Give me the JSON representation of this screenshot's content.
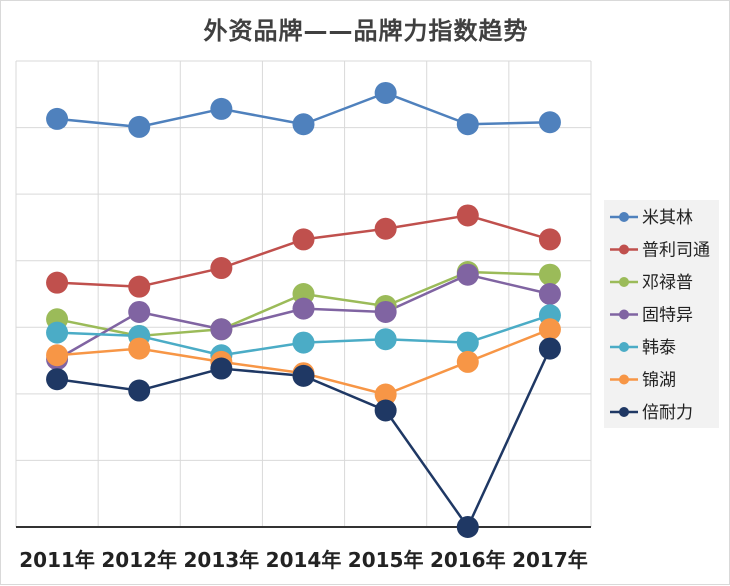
{
  "chart_data": {
    "type": "line",
    "title": "外资品牌——品牌力指数趋势",
    "xlabel": "",
    "ylabel": "",
    "categories": [
      "2011年",
      "2012年",
      "2013年",
      "2014年",
      "2015年",
      "2016年",
      "2017年"
    ],
    "ylim": [
      0,
      7
    ],
    "grid": true,
    "legend_position": "right",
    "series": [
      {
        "name": "米其林",
        "color": "#4f81bd",
        "values": [
          6.13,
          6.01,
          6.28,
          6.05,
          6.52,
          6.05,
          6.08
        ]
      },
      {
        "name": "普利司通",
        "color": "#c0504d",
        "values": [
          3.67,
          3.61,
          3.89,
          4.32,
          4.48,
          4.68,
          4.32
        ]
      },
      {
        "name": "邓禄普",
        "color": "#9bbb59",
        "values": [
          3.12,
          2.87,
          2.97,
          3.5,
          3.32,
          3.83,
          3.79
        ]
      },
      {
        "name": "固特异",
        "color": "#8064a2",
        "values": [
          2.52,
          3.23,
          2.97,
          3.28,
          3.23,
          3.79,
          3.5
        ]
      },
      {
        "name": "韩泰",
        "color": "#4bacc6",
        "values": [
          2.92,
          2.87,
          2.58,
          2.77,
          2.82,
          2.77,
          3.18
        ]
      },
      {
        "name": "锦湖",
        "color": "#f79646",
        "values": [
          2.58,
          2.68,
          2.48,
          2.31,
          1.99,
          2.48,
          2.97
        ]
      },
      {
        "name": "倍耐力",
        "color": "#1f3864",
        "values": [
          2.22,
          2.05,
          2.38,
          2.27,
          1.75,
          0.0,
          2.68
        ]
      }
    ]
  }
}
